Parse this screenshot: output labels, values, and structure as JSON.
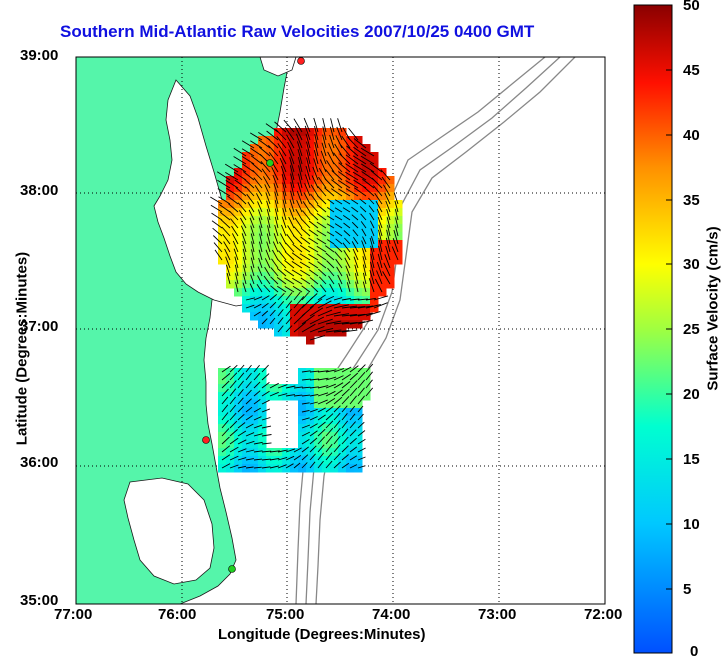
{
  "title": "Southern Mid-Atlantic Raw Velocities 2007/10/25 0400 GMT",
  "axes": {
    "xlabel": "Longitude (Degrees:Minutes)",
    "ylabel": "Latitude (Degrees:Minutes)",
    "x_ticks": [
      "77:00",
      "76:00",
      "75:00",
      "74:00",
      "73:00",
      "72:00"
    ],
    "y_ticks": [
      "39:00",
      "38:00",
      "37:00",
      "36:00",
      "35:00"
    ]
  },
  "colorbar": {
    "label": "Surface Velocity (cm/s)",
    "ticks": [
      "50",
      "45",
      "40",
      "35",
      "30",
      "25",
      "20",
      "15",
      "10",
      "5",
      "0"
    ],
    "min": 0,
    "max": 50
  },
  "colors": {
    "land": "#55f5aa",
    "title": "#1010e0",
    "bathymetry": "#888888",
    "station_red": "#ff2020",
    "station_green": "#20d020"
  }
}
